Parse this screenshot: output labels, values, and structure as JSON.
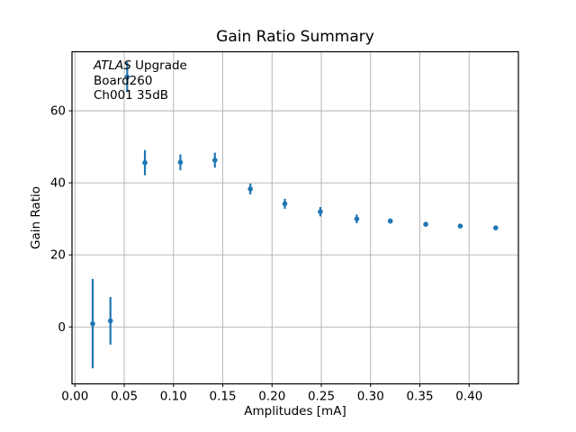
{
  "chart_data": {
    "type": "scatter",
    "title": "Gain Ratio Summary",
    "xlabel": "Amplitudes [mA]",
    "ylabel": "Gain Ratio",
    "xlim": [
      -0.003,
      0.45
    ],
    "ylim": [
      -15.8,
      76.4
    ],
    "xticks": [
      0.0,
      0.05,
      0.1,
      0.15,
      0.2,
      0.25,
      0.3,
      0.35,
      0.4
    ],
    "xtick_labels": [
      "0.00",
      "0.05",
      "0.10",
      "0.15",
      "0.20",
      "0.25",
      "0.30",
      "0.35",
      "0.40"
    ],
    "yticks": [
      0,
      20,
      40,
      60
    ],
    "ytick_labels": [
      "0",
      "20",
      "40",
      "60"
    ],
    "grid": true,
    "legend": false,
    "marker_color": "#1f77b4",
    "grid_color": "#b0b0b0",
    "spine_color": "#000000",
    "background_color": "#ffffff",
    "annotation": {
      "line1_italic": "ATLAS",
      "line1_rest": " Upgrade",
      "line2": "Board260",
      "line3": "Ch001 35dB"
    },
    "series": [
      {
        "name": "gain-ratio-vs-amplitude",
        "points": [
          {
            "x": 0.018,
            "y": 0.9,
            "yerr": 12.4
          },
          {
            "x": 0.036,
            "y": 1.7,
            "yerr": 6.6
          },
          {
            "x": 0.053,
            "y": 69.4,
            "yerr": 4.2
          },
          {
            "x": 0.071,
            "y": 45.6,
            "yerr": 3.5
          },
          {
            "x": 0.107,
            "y": 45.7,
            "yerr": 2.2
          },
          {
            "x": 0.142,
            "y": 46.3,
            "yerr": 2.1
          },
          {
            "x": 0.178,
            "y": 38.3,
            "yerr": 1.5
          },
          {
            "x": 0.213,
            "y": 34.2,
            "yerr": 1.4
          },
          {
            "x": 0.249,
            "y": 32.0,
            "yerr": 1.3
          },
          {
            "x": 0.286,
            "y": 30.0,
            "yerr": 1.2
          },
          {
            "x": 0.32,
            "y": 29.4,
            "yerr": 0.7
          },
          {
            "x": 0.356,
            "y": 28.5,
            "yerr": 0.5
          },
          {
            "x": 0.391,
            "y": 28.0,
            "yerr": 0.5
          },
          {
            "x": 0.427,
            "y": 27.5,
            "yerr": 0.5
          }
        ]
      }
    ]
  }
}
